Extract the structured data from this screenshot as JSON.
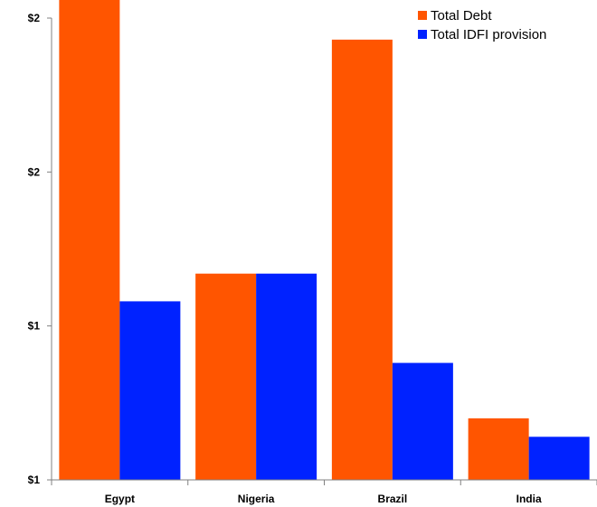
{
  "chart_data": {
    "type": "bar",
    "title": "",
    "xlabel": "",
    "ylabel": "",
    "categories": [
      "Egypt",
      "Nigeria",
      "Brazil",
      "India"
    ],
    "series": [
      {
        "name": "Total Debt",
        "color": "#ff5500",
        "values": [
          2.74,
          1.8,
          2.56,
          1.33
        ]
      },
      {
        "name": "Total IDFI provision",
        "color": "#0022ff",
        "values": [
          1.71,
          1.8,
          1.51,
          1.27
        ]
      }
    ],
    "ylim": [
      1.13,
      2.63
    ],
    "y_tick_values": [
      1.13,
      1.63,
      2.13,
      2.63
    ],
    "y_tick_labels": [
      "$1",
      "$1",
      "$2",
      "$2"
    ],
    "grid": false,
    "legend_position": "top-right"
  },
  "colors": {
    "axis": "#808080",
    "text": "#000000"
  }
}
